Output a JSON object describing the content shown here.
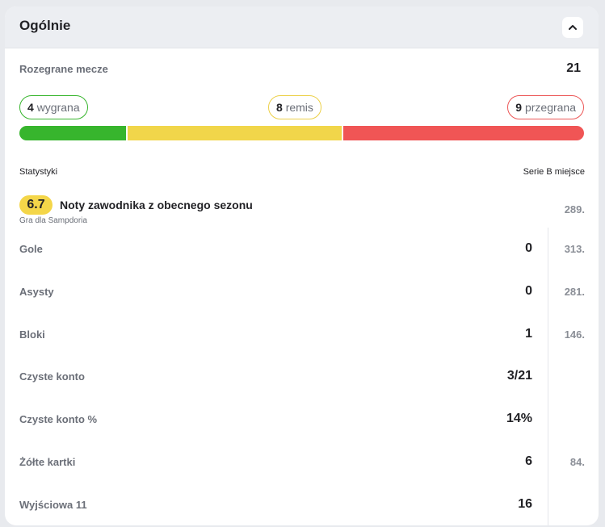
{
  "header": {
    "title": "Ogólnie"
  },
  "matches": {
    "label": "Rozegrane mecze",
    "value": "21"
  },
  "results": {
    "win_count": "4",
    "win_label": "wygrana",
    "draw_count": "8",
    "draw_label": "remis",
    "loss_count": "9",
    "loss_label": "przegrana",
    "win_fraction": 0.19,
    "draw_fraction": 0.381,
    "loss_fraction": 0.429,
    "colors": {
      "win": "#37b52d",
      "draw": "#f1d64a",
      "loss": "#f05555"
    }
  },
  "columns": {
    "left": "Statystyki",
    "right": "Serie B miejsce"
  },
  "rating": {
    "value": "6.7",
    "title": "Noty zawodnika z obecnego sezonu",
    "subtitle": "Gra dla Sampdoria",
    "rank": "289."
  },
  "stats": [
    {
      "label": "Gole",
      "value": "0",
      "rank": "313."
    },
    {
      "label": "Asysty",
      "value": "0",
      "rank": "281."
    },
    {
      "label": "Bloki",
      "value": "1",
      "rank": "146."
    },
    {
      "label": "Czyste konto",
      "value": "3/21",
      "rank": ""
    },
    {
      "label": "Czyste konto %",
      "value": "14%",
      "rank": ""
    },
    {
      "label": "Żółte kartki",
      "value": "6",
      "rank": "84."
    },
    {
      "label": "Wyjściowa 11",
      "value": "16",
      "rank": ""
    }
  ]
}
